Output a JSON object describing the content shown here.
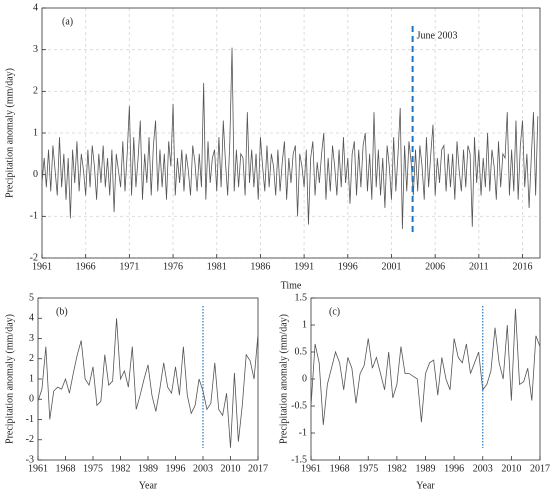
{
  "chart_data": [
    {
      "type": "line",
      "title": "(a)",
      "xlabel": "Time",
      "ylabel": "Precipitation anomaly (mm/day)",
      "color": "#555555",
      "x": [
        1961,
        1961.25,
        1961.5,
        1961.75,
        1962,
        1962.25,
        1962.5,
        1962.75,
        1963,
        1963.25,
        1963.5,
        1963.75,
        1964,
        1964.25,
        1964.5,
        1964.75,
        1965,
        1965.25,
        1965.5,
        1965.75,
        1966,
        1966.25,
        1966.5,
        1966.75,
        1967,
        1967.25,
        1967.5,
        1967.75,
        1968,
        1968.25,
        1968.5,
        1968.75,
        1969,
        1969.25,
        1969.5,
        1969.75,
        1970,
        1970.25,
        1970.5,
        1970.75,
        1971,
        1971.25,
        1971.5,
        1971.75,
        1972,
        1972.25,
        1972.5,
        1972.75,
        1973,
        1973.25,
        1973.5,
        1973.75,
        1974,
        1974.25,
        1974.5,
        1974.75,
        1975,
        1975.25,
        1975.5,
        1975.75,
        1976,
        1976.25,
        1976.5,
        1976.75,
        1977,
        1977.25,
        1977.5,
        1977.75,
        1978,
        1978.25,
        1978.5,
        1978.75,
        1979,
        1979.25,
        1979.5,
        1979.75,
        1980,
        1980.25,
        1980.5,
        1980.75,
        1981,
        1981.25,
        1981.5,
        1981.75,
        1982,
        1982.25,
        1982.5,
        1982.75,
        1983,
        1983.25,
        1983.5,
        1983.75,
        1984,
        1984.25,
        1984.5,
        1984.75,
        1985,
        1985.25,
        1985.5,
        1985.75,
        1986,
        1986.25,
        1986.5,
        1986.75,
        1987,
        1987.25,
        1987.5,
        1987.75,
        1988,
        1988.25,
        1988.5,
        1988.75,
        1989,
        1989.25,
        1989.5,
        1989.75,
        1990,
        1990.25,
        1990.5,
        1990.75,
        1991,
        1991.25,
        1991.5,
        1991.75,
        1992,
        1992.25,
        1992.5,
        1992.75,
        1993,
        1993.25,
        1993.5,
        1993.75,
        1994,
        1994.25,
        1994.5,
        1994.75,
        1995,
        1995.25,
        1995.5,
        1995.75,
        1996,
        1996.25,
        1996.5,
        1996.75,
        1997,
        1997.25,
        1997.5,
        1997.75,
        1998,
        1998.25,
        1998.5,
        1998.75,
        1999,
        1999.25,
        1999.5,
        1999.75,
        2000,
        2000.25,
        2000.5,
        2000.75,
        2001,
        2001.25,
        2001.5,
        2001.75,
        2002,
        2002.25,
        2002.5,
        2002.75,
        2003,
        2003.25,
        2003.5,
        2003.75,
        2004,
        2004.25,
        2004.5,
        2004.75,
        2005,
        2005.25,
        2005.5,
        2005.75,
        2006,
        2006.25,
        2006.5,
        2006.75,
        2007,
        2007.25,
        2007.5,
        2007.75,
        2008,
        2008.25,
        2008.5,
        2008.75,
        2009,
        2009.25,
        2009.5,
        2009.75,
        2010,
        2010.25,
        2010.5,
        2010.75,
        2011,
        2011.25,
        2011.5,
        2011.75,
        2012,
        2012.25,
        2012.5,
        2012.75,
        2013,
        2013.25,
        2013.5,
        2013.75,
        2014,
        2014.25,
        2014.5,
        2014.75,
        2015,
        2015.25,
        2015.5,
        2015.75,
        2016,
        2016.25,
        2016.5,
        2016.75,
        2017,
        2017.25,
        2017.5,
        2017.75
      ],
      "values": [
        -0.2,
        0.4,
        -0.3,
        0.6,
        -0.4,
        0.7,
        0.1,
        -0.5,
        0.9,
        -0.3,
        0.5,
        -0.6,
        0.4,
        -1.05,
        0.6,
        -0.2,
        0.8,
        -0.4,
        0.5,
        0.1,
        -0.5,
        0.6,
        -0.3,
        0.7,
        0.2,
        -0.6,
        0.5,
        -0.2,
        0.7,
        -0.3,
        0.4,
        -0.5,
        0.6,
        -0.9,
        0.5,
        0.1,
        -0.3,
        0.8,
        -0.4,
        0.5,
        1.65,
        -0.5,
        0.9,
        -0.3,
        0.4,
        1.3,
        -0.6,
        0.5,
        -0.2,
        0.9,
        -0.5,
        0.7,
        1.3,
        -0.4,
        0.6,
        -0.3,
        0.5,
        -0.6,
        0.8,
        0.2,
        1.7,
        -0.5,
        0.4,
        -0.2,
        0.6,
        -0.4,
        0.5,
        0.1,
        -0.5,
        0.7,
        0.3,
        -0.4,
        0.5,
        -0.3,
        2.2,
        -0.6,
        0.8,
        -0.2,
        0.4,
        0.6,
        -0.4,
        0.9,
        -0.3,
        1.3,
        0.3,
        -0.5,
        0.8,
        3.05,
        -0.4,
        0.6,
        -0.3,
        0.5,
        0.4,
        -0.5,
        1.5,
        -0.2,
        0.6,
        -0.3,
        0.5,
        -0.6,
        0.9,
        0.2,
        -0.4,
        0.7,
        -0.3,
        0.5,
        0.2,
        -0.5,
        0.6,
        -0.4,
        0.3,
        0.8,
        -0.6,
        0.4,
        -0.2,
        0.5,
        0.7,
        -1.0,
        0.5,
        0.2,
        -0.3,
        0.6,
        -1.2,
        0.4,
        0.8,
        -0.5,
        0.3,
        -0.2,
        0.5,
        1.0,
        -0.6,
        0.4,
        -0.4,
        0.7,
        0.2,
        -0.5,
        0.6,
        -0.3,
        0.9,
        -0.2,
        0.4,
        -0.7,
        0.5,
        0.8,
        -0.5,
        0.6,
        -0.3,
        0.7,
        1.0,
        -0.4,
        0.5,
        -0.6,
        1.5,
        -0.3,
        0.6,
        -0.5,
        0.4,
        -0.8,
        0.7,
        0.2,
        -0.6,
        0.9,
        -0.4,
        0.5,
        1.6,
        -1.3,
        0.7,
        -0.4,
        0.8,
        0.3,
        -0.5,
        0.6,
        -0.4,
        0.7,
        0.2,
        -0.6,
        0.9,
        -0.3,
        0.5,
        1.2,
        -0.5,
        0.4,
        -0.2,
        0.6,
        0.7,
        -0.4,
        0.5,
        -0.3,
        0.5,
        -0.6,
        0.8,
        0.1,
        -0.4,
        0.6,
        -0.3,
        0.7,
        0.5,
        -1.25,
        0.9,
        -0.2,
        0.6,
        -0.5,
        0.4,
        -0.3,
        1.0,
        -0.4,
        0.6,
        0.2,
        -0.6,
        0.8,
        -0.3,
        0.5,
        0.4,
        1.5,
        -0.5,
        0.6,
        -0.4,
        1.3,
        -0.6,
        0.7,
        1.3,
        -0.3,
        0.5,
        -0.8,
        0.4,
        1.5,
        -0.5,
        1.4
      ],
      "xlim": [
        1961,
        2018
      ],
      "xticks": [
        1961,
        1966,
        1971,
        1976,
        1981,
        1986,
        1991,
        1996,
        2001,
        2006,
        2011,
        2016
      ],
      "ylim": [
        -2,
        4
      ],
      "yticks": [
        -2,
        -1,
        0,
        1,
        2,
        3,
        4
      ],
      "grid": true,
      "vline": {
        "x": 2003.42,
        "label": "June 2003",
        "color": "#1f77c4",
        "style": "dashed"
      }
    },
    {
      "type": "line",
      "title": "(b)",
      "xlabel": "Year",
      "ylabel": "Precipitation anomaly (mm/day)",
      "color": "#555555",
      "x": [
        1961,
        1962,
        1963,
        1964,
        1965,
        1966,
        1967,
        1968,
        1969,
        1970,
        1971,
        1972,
        1973,
        1974,
        1975,
        1976,
        1977,
        1978,
        1979,
        1980,
        1981,
        1982,
        1983,
        1984,
        1985,
        1986,
        1987,
        1988,
        1989,
        1990,
        1991,
        1992,
        1993,
        1994,
        1995,
        1996,
        1997,
        1998,
        1999,
        2000,
        2001,
        2002,
        2003,
        2004,
        2005,
        2006,
        2007,
        2008,
        2009,
        2010,
        2011,
        2012,
        2013,
        2014,
        2015,
        2016,
        2017
      ],
      "values": [
        -0.1,
        0.5,
        2.6,
        -1.0,
        0.4,
        0.6,
        0.5,
        1.0,
        0.3,
        1.3,
        2.2,
        2.9,
        1.0,
        0.7,
        1.6,
        -0.3,
        -0.1,
        2.2,
        0.7,
        0.9,
        4.0,
        1.0,
        1.4,
        0.6,
        2.6,
        -0.5,
        0.2,
        1.0,
        1.7,
        0.2,
        -0.6,
        0.5,
        1.8,
        0.6,
        0.3,
        1.6,
        0.2,
        2.6,
        0.2,
        -0.7,
        -0.3,
        1.0,
        0.4,
        -0.5,
        -0.2,
        1.8,
        -0.5,
        -0.8,
        0.3,
        -2.4,
        1.3,
        -2.1,
        -0.3,
        2.2,
        1.9,
        1.0,
        3.2
      ],
      "xlim": [
        1961,
        2017
      ],
      "xticks": [
        1961,
        1968,
        1975,
        1982,
        1989,
        1996,
        2003,
        2010,
        2017
      ],
      "ylim": [
        -3,
        5
      ],
      "yticks": [
        -3,
        -2,
        -1,
        0,
        1,
        2,
        3,
        4,
        5
      ],
      "grid": false,
      "vline": {
        "x": 2003,
        "color": "#1f77c4",
        "style": "dotted"
      }
    },
    {
      "type": "line",
      "title": "(c)",
      "xlabel": "Year",
      "ylabel": "Precipitation anomaly (mm/day)",
      "color": "#555555",
      "x": [
        1961,
        1962,
        1963,
        1964,
        1965,
        1966,
        1967,
        1968,
        1969,
        1970,
        1971,
        1972,
        1973,
        1974,
        1975,
        1976,
        1977,
        1978,
        1979,
        1980,
        1981,
        1982,
        1983,
        1984,
        1985,
        1986,
        1987,
        1988,
        1989,
        1990,
        1991,
        1992,
        1993,
        1994,
        1995,
        1996,
        1997,
        1998,
        1999,
        2000,
        2001,
        2002,
        2003,
        2004,
        2005,
        2006,
        2007,
        2008,
        2009,
        2010,
        2011,
        2012,
        2013,
        2014,
        2015,
        2016,
        2017
      ],
      "values": [
        -0.5,
        0.65,
        0.3,
        -0.85,
        -0.1,
        0.2,
        0.5,
        0.3,
        -0.2,
        0.4,
        0.2,
        -0.45,
        0.1,
        0.25,
        0.75,
        0.2,
        0.4,
        0.1,
        -0.2,
        0.5,
        -0.35,
        -0.1,
        0.6,
        0.1,
        0.1,
        0.05,
        0.0,
        -0.8,
        0.1,
        0.3,
        0.35,
        -0.3,
        0.4,
        0.0,
        -0.2,
        0.75,
        0.4,
        0.3,
        0.65,
        0.1,
        0.3,
        0.5,
        -0.2,
        -0.1,
        0.15,
        0.95,
        0.3,
        0.0,
        1.0,
        -0.4,
        1.3,
        -0.1,
        -0.05,
        0.2,
        -0.4,
        0.8,
        0.6
      ],
      "xlim": [
        1961,
        2017
      ],
      "xticks": [
        1961,
        1968,
        1975,
        1982,
        1989,
        1996,
        2003,
        2010,
        2017
      ],
      "ylim": [
        -1.5,
        1.5
      ],
      "yticks": [
        -1.5,
        -1,
        -0.5,
        0,
        0.5,
        1,
        1.5
      ],
      "grid": false,
      "vline": {
        "x": 2003,
        "color": "#1f77c4",
        "style": "dotted"
      }
    }
  ]
}
